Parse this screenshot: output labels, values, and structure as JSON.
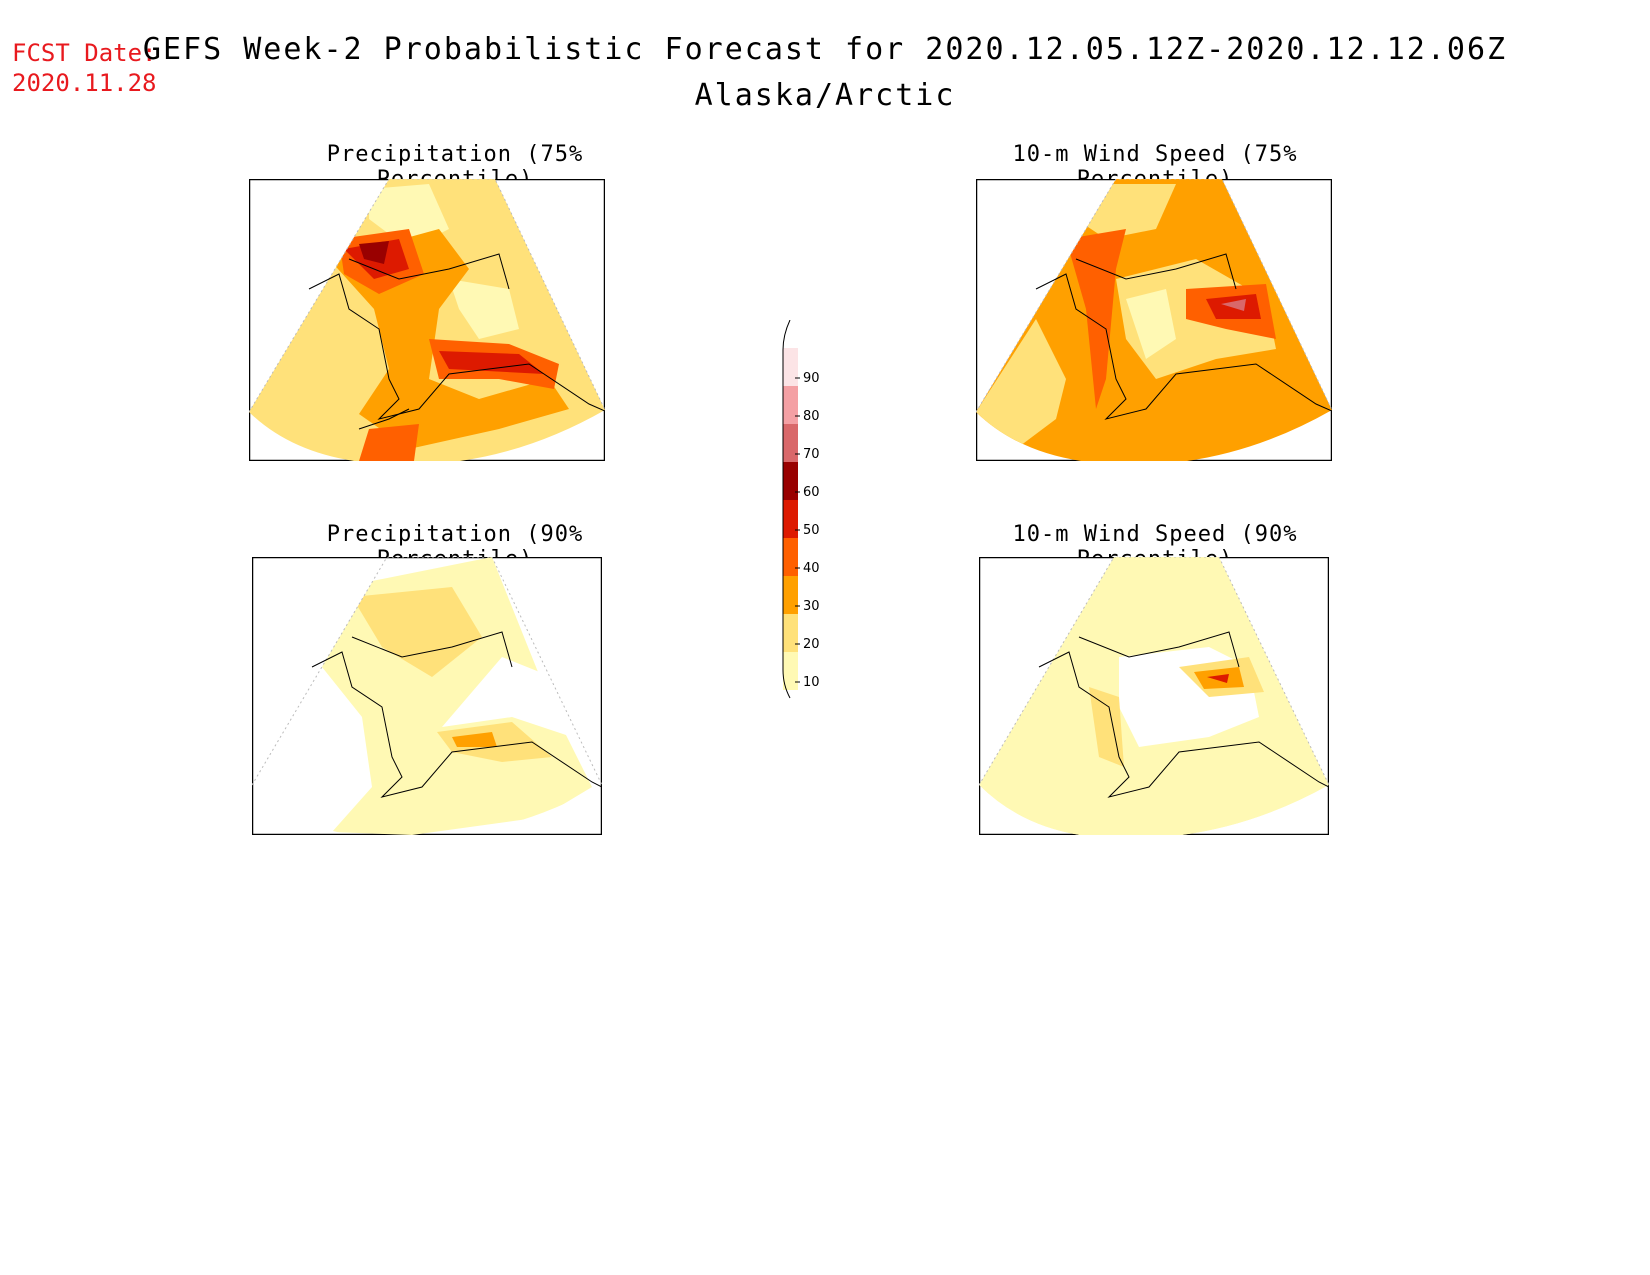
{
  "header": {
    "fcst_label": "FCST Date:",
    "fcst_date": "2020.11.28",
    "title": "GEFS Week-2 Probabilistic Forecast for 2020.12.05.12Z-2020.12.12.06Z",
    "subtitle": "Alaska/Arctic"
  },
  "panels": [
    {
      "id": "precip75",
      "title": "Precipitation (75% Percentile)"
    },
    {
      "id": "wind75",
      "title": "10-m Wind Speed (75% Percentile)"
    },
    {
      "id": "precip90",
      "title": "Precipitation (90% Percentile)"
    },
    {
      "id": "wind90",
      "title": "10-m Wind Speed (90% Percentile)"
    }
  ],
  "colorbar": {
    "labels": [
      "90",
      "80",
      "70",
      "60",
      "50",
      "40",
      "30",
      "20",
      "10"
    ],
    "colors": [
      "#fce4e6",
      "#f4a0a4",
      "#d9686a",
      "#990000",
      "#dd1a00",
      "#ff6000",
      "#ffa000",
      "#ffe17a",
      "#fff9b4"
    ]
  },
  "palette": {
    "c10": "#fff9b4",
    "c20": "#ffe17a",
    "c30": "#ffa000",
    "c40": "#ff6000",
    "c50": "#dd1a00",
    "c60": "#990000",
    "c70": "#d9686a"
  }
}
